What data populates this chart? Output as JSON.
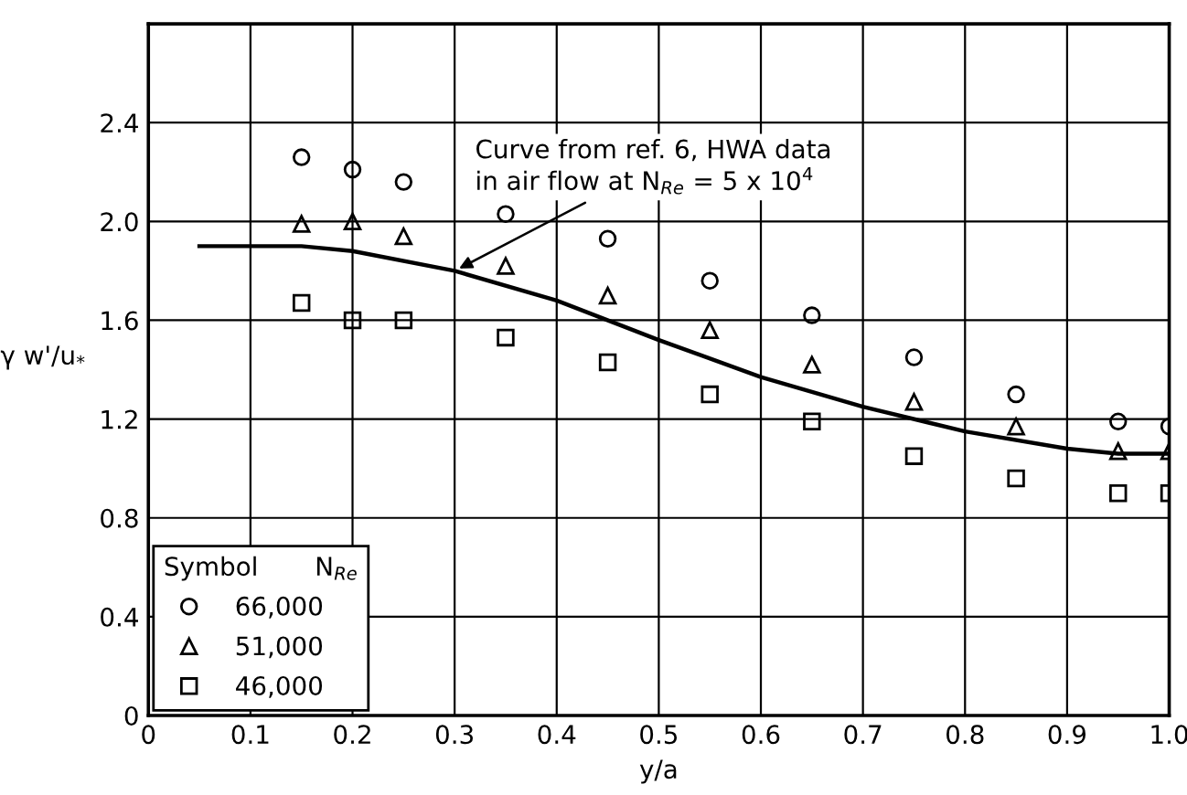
{
  "chart_data": {
    "type": "scatter",
    "xlabel": "y/a",
    "ylabel": "γ w'/u$_{*}$",
    "legend_title": "Symbol       N$_{Re}$",
    "xlim": [
      0,
      1.0
    ],
    "xticks": [
      0,
      0.1,
      0.2,
      0.3,
      0.4,
      0.5,
      0.6,
      0.7,
      0.8,
      0.9,
      {
        "value": 1.0,
        "label": "1.0"
      }
    ],
    "ylim": [
      0,
      2.8
    ],
    "yticks": [
      0,
      0.4,
      0.8,
      1.2,
      1.6,
      {
        "value": 2.0,
        "label": "2.0"
      },
      2.4,
      {
        "value": 2.8,
        "label": null
      }
    ],
    "grid": true,
    "legend": "bottom left",
    "annotations": [
      {
        "text": "Curve from ref. 6, HWA data\nin air flow at N$_{Re}$ = 5 x 10$^{4}$",
        "x": 0.3,
        "y": 1.8
      }
    ],
    "series": [
      {
        "name": "66,000",
        "color": "#000000",
        "marker": "circle",
        "x": [
          0.15,
          0.2,
          0.25,
          0.35,
          0.45,
          0.55,
          0.65,
          0.75,
          0.85,
          0.95,
          1.0
        ],
        "values": [
          2.26,
          2.21,
          2.16,
          2.03,
          1.93,
          1.76,
          1.62,
          1.45,
          1.3,
          1.19,
          1.17
        ]
      },
      {
        "name": "51,000",
        "color": "#000000",
        "marker": "triangle",
        "x": [
          0.15,
          0.2,
          0.25,
          0.35,
          0.45,
          0.55,
          0.65,
          0.75,
          0.85,
          0.95,
          1.0
        ],
        "values": [
          1.99,
          2.0,
          1.94,
          1.82,
          1.7,
          1.56,
          1.42,
          1.27,
          1.17,
          1.07,
          1.07
        ]
      },
      {
        "name": "46,000",
        "color": "#000000",
        "marker": "square",
        "x": [
          0.15,
          0.2,
          0.25,
          0.35,
          0.45,
          0.55,
          0.65,
          0.75,
          0.85,
          0.95,
          1.0
        ],
        "values": [
          1.67,
          1.6,
          1.6,
          1.53,
          1.43,
          1.3,
          1.19,
          1.05,
          0.96,
          0.9,
          0.9
        ]
      },
      {
        "type": "line",
        "color": "#000000",
        "line_style": "solid",
        "x": [
          0.05,
          0.1,
          0.15,
          0.2,
          0.3,
          0.4,
          0.5,
          0.6,
          0.7,
          0.8,
          0.9,
          0.95,
          1.0
        ],
        "values": [
          1.9,
          1.9,
          1.9,
          1.88,
          1.8,
          1.68,
          1.52,
          1.37,
          1.25,
          1.15,
          1.08,
          1.06,
          1.06
        ]
      }
    ]
  }
}
